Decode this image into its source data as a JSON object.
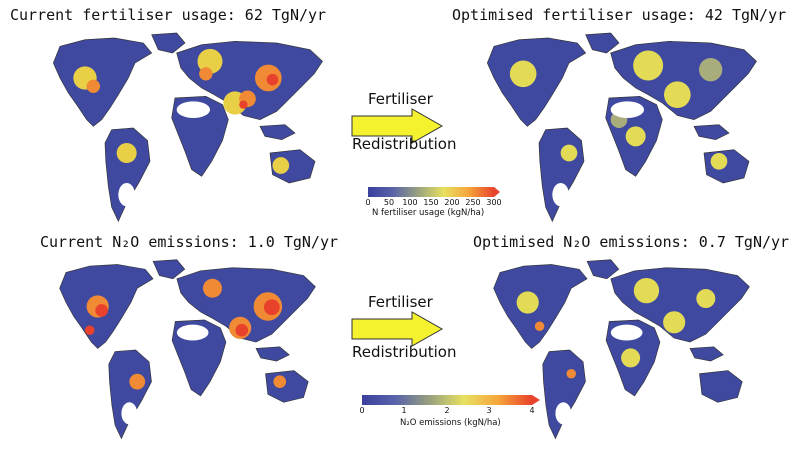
{
  "panels": {
    "top_left_title": "Current fertiliser usage: 62 TgN/yr",
    "top_right_title": "Optimised fertiliser usage: 42 TgN/yr",
    "bottom_left_title": "Current N₂O emissions: 1.0 TgN/yr",
    "bottom_right_title": "Optimised N₂O emissions: 0.7 TgN/yr"
  },
  "arrows": {
    "top": {
      "line1": "Fertiliser",
      "line2": "Redistribution"
    },
    "bottom": {
      "line1": "Fertiliser",
      "line2": "Redistribution"
    }
  },
  "colorbars": {
    "fertiliser": {
      "label": "N fertiliser usage (kgN/ha)",
      "ticks": [
        "0",
        "50",
        "100",
        "150",
        "200",
        "250",
        "300"
      ]
    },
    "n2o": {
      "label": "N₂O emissions (kgN/ha)",
      "ticks": [
        "0",
        "1",
        "2",
        "3",
        "4"
      ]
    }
  },
  "colors": {
    "scale": [
      "#3b3f9e",
      "#5a64a8",
      "#9aa27e",
      "#e7e060",
      "#f5a53a",
      "#e8422d"
    ],
    "arrow_fill": "#f4f22e",
    "land_outline": "#333333"
  }
}
